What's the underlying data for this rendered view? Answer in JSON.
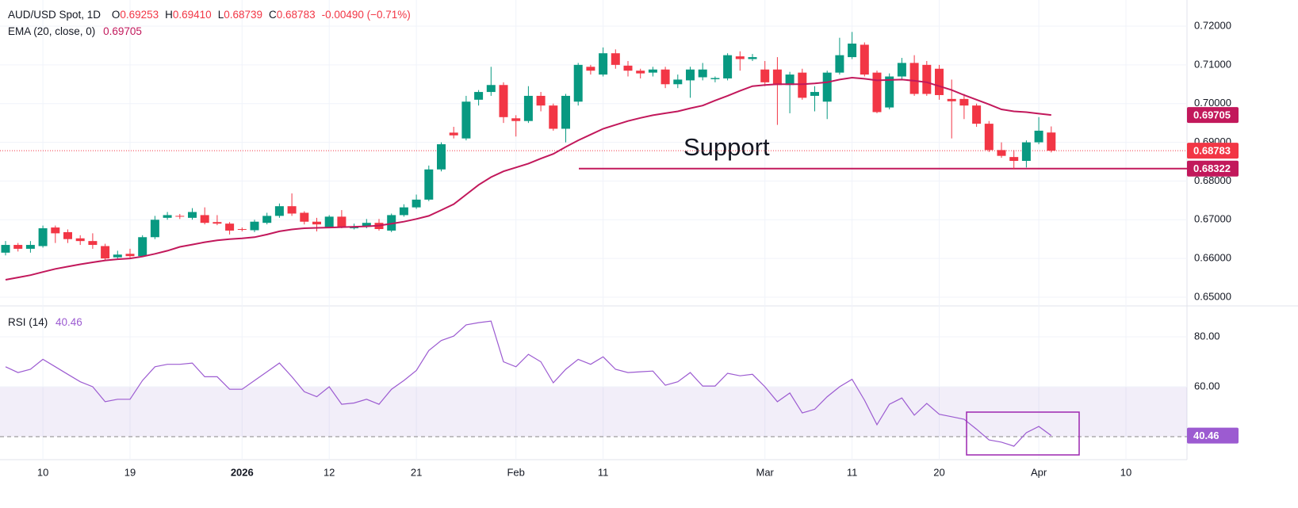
{
  "chart_data": {
    "type": "candlestick",
    "header": {
      "symbol": "AUD/USD Spot, 1D",
      "ohlc": [
        {
          "key": "O",
          "value": "0.69253"
        },
        {
          "key": "H",
          "value": "0.69410"
        },
        {
          "key": "L",
          "value": "0.68739"
        },
        {
          "key": "C",
          "value": "0.68783"
        }
      ],
      "change": "-0.00490 (−0.71%)"
    },
    "categories": [
      null,
      null,
      null,
      "10",
      null,
      null,
      null,
      null,
      null,
      null,
      "19",
      null,
      null,
      null,
      null,
      null,
      null,
      null,
      null,
      "2026",
      null,
      null,
      null,
      null,
      null,
      null,
      "12",
      null,
      null,
      null,
      null,
      null,
      null,
      "21",
      null,
      null,
      null,
      null,
      null,
      null,
      null,
      "Feb",
      null,
      null,
      null,
      null,
      null,
      null,
      "11",
      null,
      null,
      null,
      null,
      null,
      null,
      null,
      null,
      null,
      null,
      null,
      null,
      "Mar",
      null,
      null,
      null,
      null,
      null,
      null,
      "11",
      null,
      null,
      null,
      null,
      null,
      null,
      "20",
      null,
      null,
      null,
      null,
      null,
      null,
      null,
      "Apr",
      null,
      null,
      null,
      null,
      null,
      null,
      "10"
    ],
    "bold_categories": [
      "2026"
    ],
    "open": [
      0.6615,
      0.6635,
      0.6625,
      0.6632,
      0.668,
      0.6668,
      0.6652,
      0.6645,
      0.6632,
      0.6603,
      0.6612,
      0.6606,
      0.6655,
      0.6705,
      0.671,
      0.6705,
      0.6712,
      0.6694,
      0.669,
      0.6676,
      0.6673,
      0.6692,
      0.671,
      0.6735,
      0.6718,
      0.6695,
      0.668,
      0.6708,
      0.668,
      0.6682,
      0.6692,
      0.6672,
      0.6712,
      0.6732,
      0.6752,
      0.683,
      0.6925,
      0.691,
      0.701,
      0.703,
      0.7048,
      0.6962,
      0.6955,
      0.702,
      0.6995,
      0.6935,
      0.7005,
      0.7095,
      0.7075,
      0.713,
      0.7098,
      0.7085,
      0.708,
      0.7088,
      0.705,
      0.706,
      0.7068,
      0.7063,
      0.7065,
      0.7122,
      0.7115,
      0.7088,
      0.7088,
      0.7048,
      0.708,
      0.702,
      0.7005,
      0.708,
      0.712,
      0.7152,
      0.708,
      0.699,
      0.707,
      0.7105,
      0.71,
      0.709,
      0.7012,
      0.7012,
      0.6995,
      0.6948,
      0.688,
      0.6862,
      0.6852,
      0.69,
      0.69253,
      null,
      null,
      null,
      null,
      null,
      null
    ],
    "high": [
      0.6645,
      0.664,
      0.6645,
      0.6685,
      0.6685,
      0.6675,
      0.666,
      0.6665,
      0.6638,
      0.662,
      0.6625,
      0.666,
      0.671,
      0.672,
      0.6715,
      0.673,
      0.6732,
      0.6712,
      0.6694,
      0.668,
      0.67,
      0.6718,
      0.6742,
      0.6768,
      0.6722,
      0.6705,
      0.6712,
      0.6725,
      0.669,
      0.6702,
      0.6702,
      0.6716,
      0.674,
      0.6765,
      0.684,
      0.69,
      0.694,
      0.702,
      0.7035,
      0.7095,
      0.7055,
      0.697,
      0.7045,
      0.703,
      0.7,
      0.7025,
      0.7105,
      0.71,
      0.7145,
      0.714,
      0.711,
      0.709,
      0.7095,
      0.7095,
      0.7075,
      0.7095,
      0.7105,
      0.707,
      0.713,
      0.7135,
      0.7128,
      0.711,
      0.712,
      0.7082,
      0.709,
      0.7045,
      0.7085,
      0.717,
      0.7185,
      0.7158,
      0.7085,
      0.7078,
      0.7118,
      0.7125,
      0.711,
      0.71,
      0.7062,
      0.7025,
      0.7,
      0.6955,
      0.69,
      0.688,
      0.6905,
      0.6965,
      0.6941,
      null,
      null,
      null,
      null,
      null,
      null
    ],
    "low": [
      0.6608,
      0.6618,
      0.6615,
      0.6628,
      0.664,
      0.664,
      0.6635,
      0.6625,
      0.6595,
      0.6598,
      0.66,
      0.6604,
      0.665,
      0.67,
      0.6702,
      0.67,
      0.6688,
      0.6686,
      0.6662,
      0.667,
      0.6668,
      0.6688,
      0.6705,
      0.671,
      0.6688,
      0.667,
      0.6678,
      0.6678,
      0.6675,
      0.6678,
      0.6672,
      0.6668,
      0.6708,
      0.6728,
      0.6748,
      0.6825,
      0.691,
      0.6905,
      0.6995,
      0.702,
      0.695,
      0.6915,
      0.695,
      0.698,
      0.693,
      0.69,
      0.6995,
      0.7075,
      0.707,
      0.709,
      0.707,
      0.7065,
      0.707,
      0.704,
      0.704,
      0.7015,
      0.706,
      0.7055,
      0.706,
      0.7085,
      0.711,
      0.7045,
      0.6945,
      0.6975,
      0.701,
      0.698,
      0.696,
      0.7075,
      0.7115,
      0.707,
      0.6975,
      0.6985,
      0.706,
      0.702,
      0.702,
      0.701,
      0.691,
      0.696,
      0.694,
      0.6875,
      0.686,
      0.683,
      0.6835,
      0.6895,
      0.68739,
      null,
      null,
      null,
      null,
      null,
      null
    ],
    "close": [
      0.6635,
      0.6625,
      0.6635,
      0.6678,
      0.6665,
      0.665,
      0.6645,
      0.6635,
      0.66,
      0.661,
      0.6606,
      0.6655,
      0.67,
      0.6712,
      0.6708,
      0.672,
      0.6692,
      0.669,
      0.6672,
      0.6675,
      0.6695,
      0.671,
      0.6735,
      0.6716,
      0.6695,
      0.6688,
      0.6708,
      0.6682,
      0.668,
      0.6692,
      0.6676,
      0.6712,
      0.6732,
      0.6752,
      0.683,
      0.6895,
      0.6918,
      0.7005,
      0.703,
      0.7048,
      0.6965,
      0.6955,
      0.702,
      0.6995,
      0.6935,
      0.702,
      0.71,
      0.7085,
      0.713,
      0.71,
      0.7085,
      0.7078,
      0.7088,
      0.705,
      0.7062,
      0.7088,
      0.7088,
      0.7066,
      0.7125,
      0.7115,
      0.712,
      0.7055,
      0.7048,
      0.7075,
      0.7015,
      0.703,
      0.708,
      0.7125,
      0.7155,
      0.7075,
      0.6978,
      0.707,
      0.7105,
      0.7025,
      0.7025,
      0.7022,
      0.7006,
      0.6995,
      0.6948,
      0.688,
      0.6865,
      0.6852,
      0.69,
      0.693,
      0.68783,
      null,
      null,
      null,
      null,
      null,
      null
    ],
    "up_color": "#089981",
    "down_color": "#f23645",
    "ylim": [
      0.65,
      0.72
    ],
    "yticks": [
      {
        "value": 0.72,
        "label": "0.72000"
      },
      {
        "value": 0.71,
        "label": "0.71000"
      },
      {
        "value": 0.7,
        "label": "0.70000"
      },
      {
        "value": 0.69,
        "label": "0.69000"
      },
      {
        "value": 0.68,
        "label": "0.68000"
      },
      {
        "value": 0.67,
        "label": "0.67000"
      },
      {
        "value": 0.66,
        "label": "0.66000"
      },
      {
        "value": 0.65,
        "label": "0.65000"
      }
    ],
    "grid": true,
    "ema": {
      "name": "EMA (20, close, 0)",
      "color": "#c2185b",
      "values": [
        0.6545,
        0.6551,
        0.6557,
        0.6565,
        0.6573,
        0.6579,
        0.6585,
        0.659,
        0.6595,
        0.6598,
        0.66,
        0.6605,
        0.6612,
        0.662,
        0.663,
        0.6636,
        0.6642,
        0.6647,
        0.665,
        0.6652,
        0.6655,
        0.6662,
        0.667,
        0.6675,
        0.6678,
        0.6679,
        0.668,
        0.6681,
        0.6682,
        0.6683,
        0.6685,
        0.669,
        0.6695,
        0.6702,
        0.671,
        0.6725,
        0.674,
        0.6765,
        0.679,
        0.681,
        0.6825,
        0.6835,
        0.6845,
        0.6858,
        0.687,
        0.6888,
        0.6905,
        0.692,
        0.6935,
        0.6945,
        0.6955,
        0.6963,
        0.697,
        0.6975,
        0.698,
        0.6988,
        0.6995,
        0.7008,
        0.702,
        0.7033,
        0.7045,
        0.7048,
        0.705,
        0.705,
        0.705,
        0.7052,
        0.7055,
        0.7062,
        0.7067,
        0.7064,
        0.706,
        0.7061,
        0.7062,
        0.7059,
        0.7055,
        0.7045,
        0.7035,
        0.7022,
        0.701,
        0.6998,
        0.6985,
        0.698,
        0.6978,
        0.6974,
        0.69705,
        null,
        null,
        null,
        null,
        null,
        null
      ]
    },
    "support": {
      "label": "Support",
      "value": 0.68322,
      "color": "#c2185b",
      "label_color": "#2962ff"
    },
    "rsi": {
      "name": "RSI (14)",
      "color": "#9c5bd1",
      "values": [
        68,
        65.7,
        67,
        71,
        68,
        65,
        62,
        60,
        54,
        55,
        55,
        62.5,
        68,
        69,
        69,
        69.5,
        64,
        64,
        59,
        59,
        62.5,
        66,
        69.5,
        64,
        58,
        56,
        60,
        53,
        53.5,
        55,
        53,
        59,
        62.5,
        66.5,
        74.5,
        78.5,
        80.3,
        84.8,
        85.7,
        86.3,
        70,
        68,
        73,
        70,
        61.6,
        67,
        71,
        69,
        72,
        67,
        65.7,
        66,
        66.3,
        60.6,
        62,
        65.7,
        60.3,
        60.3,
        65.4,
        64.4,
        65,
        60,
        54,
        57.5,
        49.5,
        51,
        56,
        60,
        63,
        54.6,
        44.8,
        53,
        55.5,
        48.6,
        53.3,
        49,
        48,
        47,
        43,
        38.7,
        37.8,
        36.2,
        41.6,
        44.1,
        40.46,
        null,
        null,
        null,
        null,
        null,
        null
      ],
      "ylim": [
        30.8,
        92.7
      ],
      "yticks": [
        {
          "value": 80,
          "label": "80.00"
        },
        {
          "value": 60,
          "label": "60.00"
        }
      ],
      "band": [
        40,
        60
      ]
    }
  }
}
